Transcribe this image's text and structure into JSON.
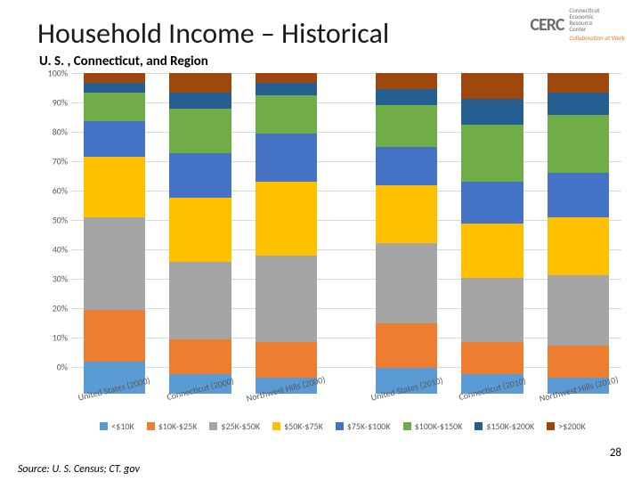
{
  "page": {
    "title": "Household Income – Historical",
    "subtitle": "U. S. , Connecticut, and Region",
    "source": "Source: U. S. Census; CT. gov",
    "number": "28",
    "title_fontsize": 32,
    "title_color": "#1a1a1a",
    "subtitle_fontsize": 15,
    "source_fontsize": 12,
    "pagenum_fontsize": 13
  },
  "logo": {
    "mark": "CERC",
    "mark_color": "#6e6e6e",
    "mark_fontsize": 20,
    "lines": [
      "Connecticut",
      "Economic",
      "Resource",
      "Center"
    ],
    "lines_color": "#6e6e6e",
    "lines_fontsize": 7,
    "tagline": "Collaboration at Work",
    "tagline_color": "#e8792e",
    "tagline_fontsize": 7
  },
  "chart": {
    "type": "stacked-bar-100",
    "background_color": "#ffffff",
    "grid_color": "#d9d9d9",
    "axis_fontsize": 10,
    "axis_color": "#595959",
    "ylim": [
      0,
      100
    ],
    "ytick_step": 10,
    "ytick_suffix": "%",
    "categories": [
      "United States (2000)",
      "Connecticut (2000)",
      "Northwest Hills (2000)",
      "United States (2010)",
      "Connecticut (2010)",
      "Northwest Hills (2010)"
    ],
    "category_group_gap_after_index": 2,
    "series": [
      {
        "label": "<$10K",
        "color": "#5b9bd5"
      },
      {
        "label": "$10K-$25K",
        "color": "#ed7d31"
      },
      {
        "label": "$25K-$50K",
        "color": "#a5a5a5"
      },
      {
        "label": "$50K-$75K",
        "color": "#ffc000"
      },
      {
        "label": "$75K-$100K",
        "color": "#4472c4"
      },
      {
        "label": "$100K-$150K",
        "color": "#70ad47"
      },
      {
        "label": "$150K-$200K",
        "color": "#255e91"
      },
      {
        "label": ">$200K",
        "color": "#9e480e"
      }
    ],
    "data": [
      [
        10,
        16,
        29,
        19,
        11,
        9,
        3,
        3
      ],
      [
        6,
        11,
        24,
        20,
        14,
        14,
        5,
        6
      ],
      [
        5,
        11,
        27,
        23,
        15,
        12,
        4,
        3
      ],
      [
        8,
        14,
        25,
        18,
        12,
        13,
        5,
        5
      ],
      [
        6,
        10,
        20,
        17,
        13,
        18,
        8,
        8
      ],
      [
        5,
        10,
        22,
        18,
        14,
        18,
        7,
        6
      ]
    ],
    "xlabel_fontsize": 10,
    "legend_fontsize": 10
  }
}
